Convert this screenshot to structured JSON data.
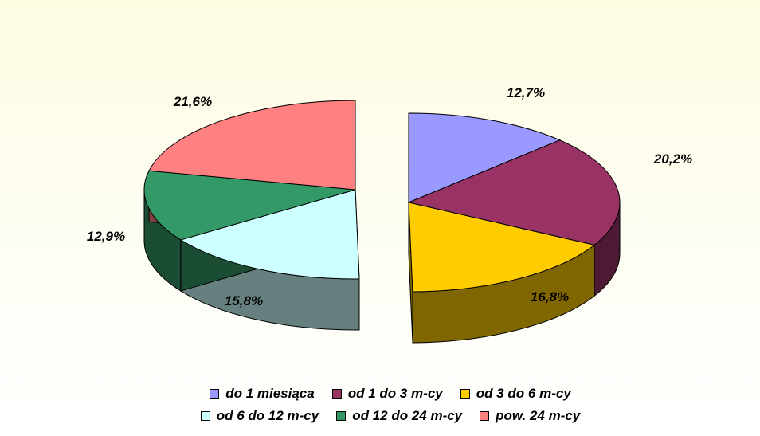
{
  "chart_data": {
    "type": "pie",
    "variant": "3d-exploded",
    "title": "",
    "slices": [
      {
        "label": "do 1 miesiąca",
        "value": 12.7,
        "display": "12,7%",
        "color": "#9999ff",
        "side_color": "#4d4d80",
        "group": "right"
      },
      {
        "label": "od 1 do 3 m-cy",
        "value": 20.2,
        "display": "20,2%",
        "color": "#993366",
        "side_color": "#4d1a33",
        "group": "right"
      },
      {
        "label": "od 3 do 6 m-cy",
        "value": 16.8,
        "display": "16,8%",
        "color": "#ffcc00",
        "side_color": "#806600",
        "group": "right"
      },
      {
        "label": "od 6 do 12 m-cy",
        "value": 15.8,
        "display": "15,8%",
        "color": "#ccffff",
        "side_color": "#668080",
        "group": "left"
      },
      {
        "label": "od 12 do 24 m-cy",
        "value": 12.9,
        "display": "12,9%",
        "color": "#339966",
        "side_color": "#1a4d33",
        "group": "left"
      },
      {
        "label": "pow. 24 m-cy",
        "value": 21.6,
        "display": "21,6%",
        "color": "#ff8080",
        "side_color": "#804040",
        "group": "left"
      }
    ],
    "legend_position": "bottom"
  },
  "legend": {
    "rows": [
      [
        {
          "label": "do 1 miesiąca",
          "color": "#9999ff"
        },
        {
          "label": "od 1 do 3 m-cy",
          "color": "#993366"
        },
        {
          "label": "od 3 do 6 m-cy",
          "color": "#ffcc00"
        }
      ],
      [
        {
          "label": "od 6 do 12 m-cy",
          "color": "#ccffff"
        },
        {
          "label": "od 12 do 24 m-cy",
          "color": "#339966"
        },
        {
          "label": "pow. 24 m-cy",
          "color": "#ff8080"
        }
      ]
    ]
  }
}
